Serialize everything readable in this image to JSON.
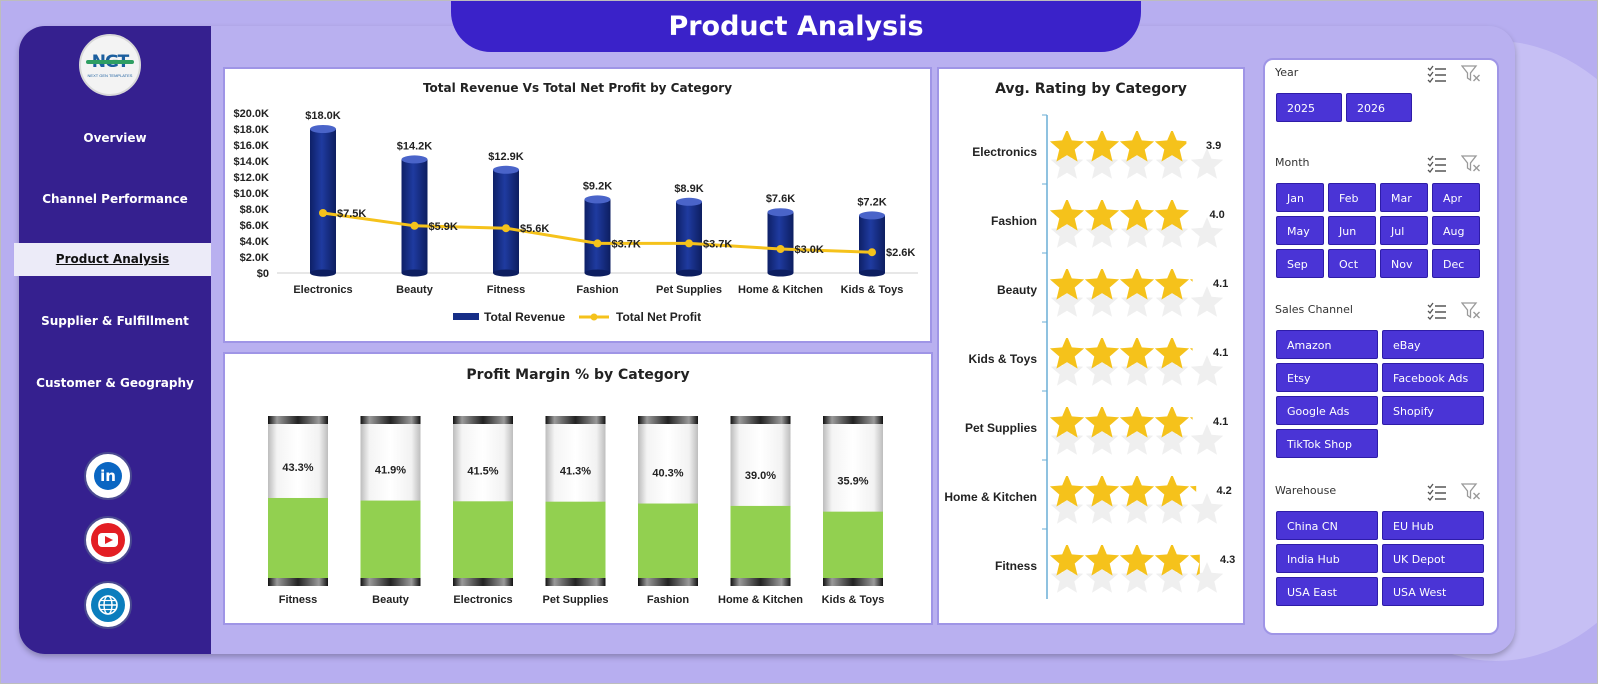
{
  "title": "Product Analysis",
  "logo": {
    "text": "NGT",
    "tagline": "NEXT GEN TEMPLATES"
  },
  "nav": [
    {
      "label": "Overview",
      "active": false
    },
    {
      "label": "Channel Performance",
      "active": false
    },
    {
      "label": "Product Analysis",
      "active": true
    },
    {
      "label": "Supplier & Fulfillment",
      "active": false
    },
    {
      "label": "Customer & Geography",
      "active": false
    }
  ],
  "social_icons": [
    "linkedin-icon",
    "youtube-icon",
    "globe-icon"
  ],
  "colors": {
    "sidebar": "#35208f",
    "accent": "#3a22c9",
    "revenue_bar": "#162e87",
    "profit_line": "#f5c21b",
    "margin_fill": "#92d050",
    "star": "#f5c21b",
    "chip": "#4a34d6"
  },
  "revenue_chart": {
    "title": "Total Revenue Vs Total Net Profit by Category",
    "y_ticks": [
      "$20.0K",
      "$18.0K",
      "$16.0K",
      "$14.0K",
      "$12.0K",
      "$10.0K",
      "$8.0K",
      "$6.0K",
      "$4.0K",
      "$2.0K",
      "$0"
    ],
    "legend": [
      "Total Revenue",
      "Total Net Profit"
    ]
  },
  "margin_chart": {
    "title": "Profit Margin % by Category"
  },
  "rating_chart": {
    "title": "Avg. Rating by Category"
  },
  "chart_data": [
    {
      "type": "bar",
      "title": "Total Revenue Vs Total Net Profit by Category",
      "categories": [
        "Electronics",
        "Beauty",
        "Fitness",
        "Fashion",
        "Pet Supplies",
        "Home & Kitchen",
        "Kids & Toys"
      ],
      "series": [
        {
          "name": "Total Revenue",
          "type": "bar",
          "values": [
            18000,
            14200,
            12900,
            9200,
            8900,
            7600,
            7200
          ],
          "labels": [
            "$18.0K",
            "$14.2K",
            "$12.9K",
            "$9.2K",
            "$8.9K",
            "$7.6K",
            "$7.2K"
          ]
        },
        {
          "name": "Total Net Profit",
          "type": "line",
          "values": [
            7500,
            5900,
            5600,
            3700,
            3700,
            3000,
            2600
          ],
          "labels": [
            "$7.5K",
            "$5.9K",
            "$5.6K",
            "$3.7K",
            "$3.7K",
            "$3.0K",
            "$2.6K"
          ]
        }
      ],
      "ylim": [
        0,
        20000
      ],
      "legend": "bottom"
    },
    {
      "type": "bar",
      "title": "Profit Margin % by Category",
      "categories": [
        "Fitness",
        "Beauty",
        "Electronics",
        "Pet Supplies",
        "Fashion",
        "Home & Kitchen",
        "Kids & Toys"
      ],
      "values": [
        43.3,
        41.9,
        41.5,
        41.3,
        40.3,
        39.0,
        35.9
      ],
      "labels": [
        "43.3%",
        "41.9%",
        "41.5%",
        "41.3%",
        "40.3%",
        "39.0%",
        "35.9%"
      ],
      "ylim": [
        0,
        100
      ]
    },
    {
      "type": "bar",
      "title": "Avg. Rating by Category",
      "categories": [
        "Electronics",
        "Fashion",
        "Beauty",
        "Kids & Toys",
        "Pet Supplies",
        "Home & Kitchen",
        "Fitness"
      ],
      "values": [
        3.9,
        4.0,
        4.1,
        4.1,
        4.1,
        4.2,
        4.3
      ],
      "labels": [
        "3.9",
        "4.0",
        "4.1",
        "4.1",
        "4.1",
        "4.2",
        "4.3"
      ],
      "xlim": [
        0,
        5
      ]
    }
  ],
  "filters": [
    {
      "label": "Year",
      "options": [
        "2025",
        "2026"
      ]
    },
    {
      "label": "Month",
      "options": [
        "Jan",
        "Feb",
        "Mar",
        "Apr",
        "May",
        "Jun",
        "Jul",
        "Aug",
        "Sep",
        "Oct",
        "Nov",
        "Dec"
      ]
    },
    {
      "label": "Sales Channel",
      "options": [
        "Amazon",
        "eBay",
        "Etsy",
        "Facebook Ads",
        "Google Ads",
        "Shopify",
        "TikTok Shop"
      ]
    },
    {
      "label": "Warehouse",
      "options": [
        "China CN",
        "EU Hub",
        "India Hub",
        "UK Depot",
        "USA East",
        "USA West"
      ]
    }
  ]
}
